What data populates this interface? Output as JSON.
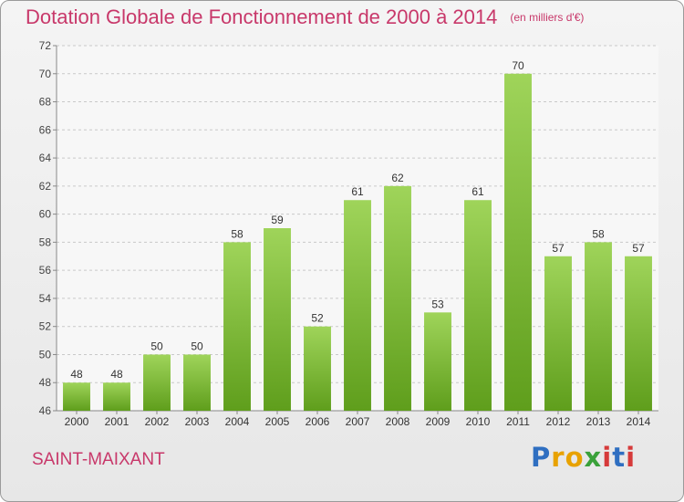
{
  "title": "Dotation Globale de Fonctionnement de 2000 à 2014",
  "unit": "(en milliers d'€)",
  "commune": "SAINT-MAIXANT",
  "logo": {
    "p1": "P",
    "p2": "r",
    "p3": "o",
    "p4": "x",
    "p5": "i",
    "p6": "t",
    "p7": "i"
  },
  "colors": {
    "bar_light": "#9fd45a",
    "bar_dark": "#5f9e1c",
    "title": "#c8386a"
  },
  "chart_data": {
    "type": "bar",
    "title": "Dotation Globale de Fonctionnement de 2000 à 2014",
    "categories": [
      "2000",
      "2001",
      "2002",
      "2003",
      "2004",
      "2005",
      "2006",
      "2007",
      "2008",
      "2009",
      "2010",
      "2011",
      "2012",
      "2013",
      "2014"
    ],
    "values": [
      48,
      48,
      50,
      50,
      58,
      59,
      52,
      61,
      62,
      53,
      61,
      70,
      57,
      58,
      57
    ],
    "ylim": [
      46,
      72
    ],
    "yticks": [
      46,
      48,
      50,
      52,
      54,
      56,
      58,
      60,
      62,
      64,
      66,
      68,
      70,
      72
    ],
    "grid": true,
    "legend": "none"
  }
}
